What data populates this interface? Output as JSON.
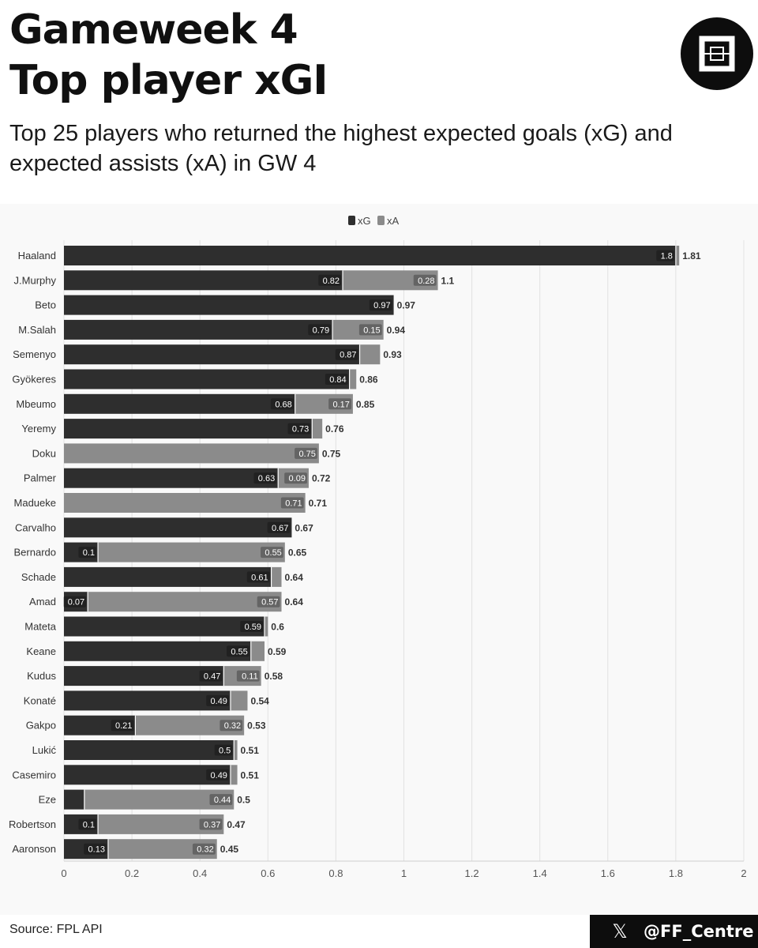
{
  "header": {
    "title_line1": "Gameweek 4",
    "title_line2": "Top player xGI",
    "subtitle": "Top 25 players who returned the highest expected goals (xG) and expected assists (xA) in GW 4"
  },
  "logo": {
    "icon": "square-logo-icon"
  },
  "footer": {
    "source": "Source: FPL API",
    "handle": "@FF_Centre",
    "social_icon": "x-icon"
  },
  "colors": {
    "xG": "#2e2e2e",
    "xA": "#8b8b8b",
    "background": "#f9f9f9"
  },
  "chart_data": {
    "type": "bar",
    "orientation": "horizontal",
    "stacked": true,
    "legend": {
      "position": "top-center",
      "entries": [
        "xG",
        "xA"
      ]
    },
    "xlim": [
      0,
      2
    ],
    "xticks": [
      "0",
      "0.2",
      "0.4",
      "0.6",
      "0.8",
      "1",
      "1.2",
      "1.4",
      "1.6",
      "1.8",
      "2"
    ],
    "grid": true,
    "categories": [
      "Haaland",
      "J.Murphy",
      "Beto",
      "M.Salah",
      "Semenyo",
      "Gyökeres",
      "Mbeumo",
      "Yeremy",
      "Doku",
      "Palmer",
      "Madueke",
      "Carvalho",
      "Bernardo",
      "Schade",
      "Amad",
      "Mateta",
      "Keane",
      "Kudus",
      "Konaté",
      "Gakpo",
      "Lukić",
      "Casemiro",
      "Eze",
      "Robertson",
      "Aaronson"
    ],
    "series": [
      {
        "name": "xG",
        "values": [
          1.8,
          0.82,
          0.97,
          0.79,
          0.87,
          0.84,
          0.68,
          0.73,
          0,
          0.63,
          0,
          0.67,
          0.1,
          0.61,
          0.07,
          0.59,
          0.55,
          0.47,
          0.49,
          0.21,
          0.5,
          0.49,
          0.06,
          0.1,
          0.13
        ],
        "labels": [
          "1.8",
          "0.82",
          "0.97",
          "0.79",
          "0.87",
          "0.84",
          "0.68",
          "0.73",
          "",
          "0.63",
          "",
          "0.67",
          "0.1",
          "0.61",
          "0.07",
          "0.59",
          "0.55",
          "0.47",
          "0.49",
          "0.21",
          "0.5",
          "0.49",
          "",
          "0.1",
          "0.13"
        ]
      },
      {
        "name": "xA",
        "values": [
          0.01,
          0.28,
          0,
          0.15,
          0.06,
          0.02,
          0.17,
          0.03,
          0.75,
          0.09,
          0.71,
          0,
          0.55,
          0.03,
          0.57,
          0.01,
          0.04,
          0.11,
          0.05,
          0.32,
          0.01,
          0.02,
          0.44,
          0.37,
          0.32
        ],
        "labels": [
          "",
          "0.28",
          "",
          "0.15",
          "",
          "",
          "0.17",
          "",
          "0.75",
          "0.09",
          "0.71",
          "",
          "0.55",
          "",
          "0.57",
          "",
          "",
          "0.11",
          "",
          "0.32",
          "",
          "",
          "0.44",
          "0.37",
          "0.32"
        ]
      }
    ],
    "totals": [
      "1.81",
      "1.1",
      "0.97",
      "0.94",
      "0.93",
      "0.86",
      "0.85",
      "0.76",
      "0.75",
      "0.72",
      "0.71",
      "0.67",
      "0.65",
      "0.64",
      "0.64",
      "0.6",
      "0.59",
      "0.58",
      "0.54",
      "0.53",
      "0.51",
      "0.51",
      "0.5",
      "0.47",
      "0.45"
    ]
  }
}
